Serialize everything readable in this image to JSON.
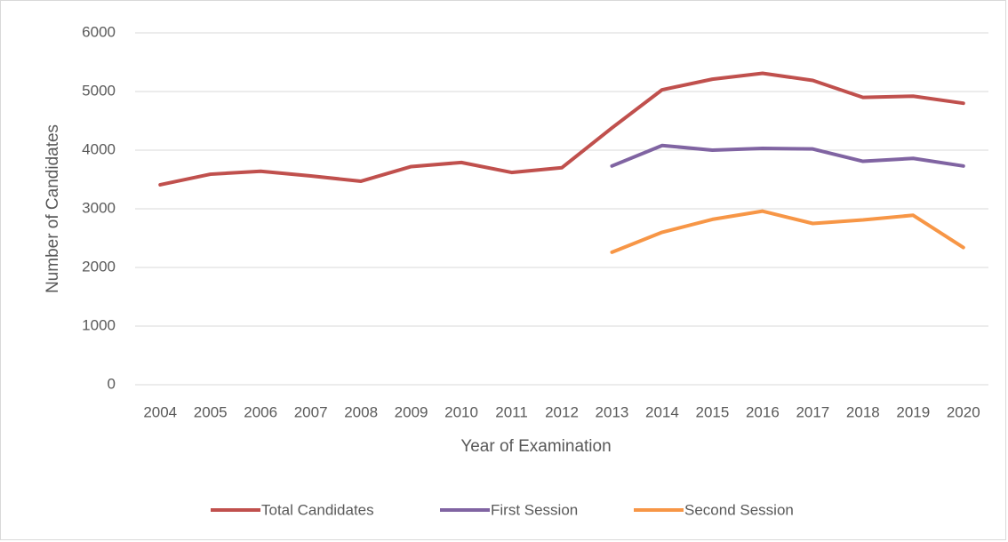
{
  "chart_data": {
    "type": "line",
    "x_label": "Year of Examination",
    "y_label": "Number of Candidates",
    "categories": [
      "2004",
      "2005",
      "2006",
      "2007",
      "2008",
      "2009",
      "2010",
      "2011",
      "2012",
      "2013",
      "2014",
      "2015",
      "2016",
      "2017",
      "2018",
      "2019",
      "2020"
    ],
    "series": [
      {
        "name": "Total Candidates",
        "color": "#c0504d",
        "values": [
          3410,
          3590,
          3640,
          3560,
          3470,
          3720,
          3790,
          3620,
          3700,
          4380,
          5030,
          5210,
          5310,
          5190,
          4900,
          4920,
          4800
        ]
      },
      {
        "name": "First Session",
        "color": "#8064a2",
        "values": [
          null,
          null,
          null,
          null,
          null,
          null,
          null,
          null,
          null,
          3730,
          4080,
          4000,
          4030,
          4020,
          3810,
          3860,
          3730
        ]
      },
      {
        "name": "Second Session",
        "color": "#f79646",
        "values": [
          null,
          null,
          null,
          null,
          null,
          null,
          null,
          null,
          null,
          2260,
          2600,
          2820,
          2960,
          2750,
          2810,
          2890,
          2340
        ]
      }
    ],
    "ylim": [
      0,
      6000
    ],
    "yticks": [
      0,
      1000,
      2000,
      3000,
      4000,
      5000,
      6000
    ],
    "grid": true,
    "legend": "bottom"
  }
}
